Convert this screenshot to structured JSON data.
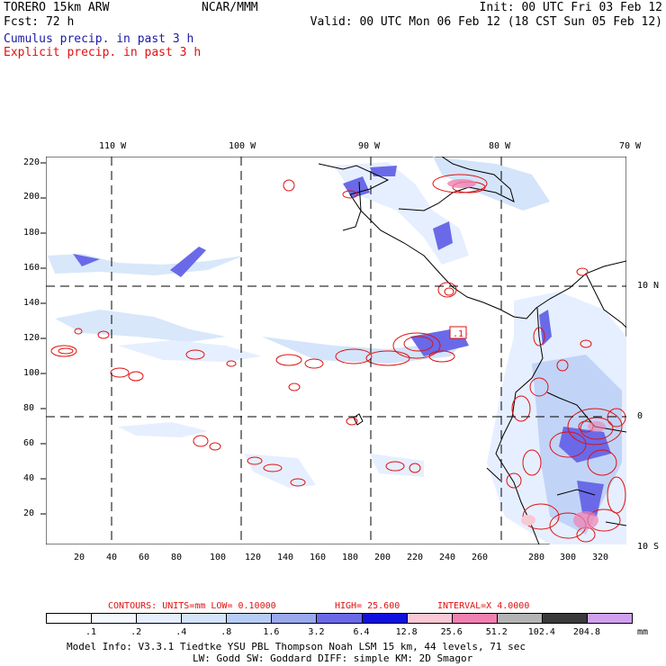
{
  "header": {
    "model": "TORERO  15km ARW",
    "center": "NCAR/MMM",
    "init": "Init: 00 UTC Fri 03 Feb 12",
    "fcst": "Fcst:   72 h",
    "valid": "Valid: 00 UTC Mon 06 Feb 12 (18 CST Sun 05 Feb 12)",
    "field1": "Cumulus precip. in past 3 h",
    "field2": "Explicit precip. in past 3 h"
  },
  "axes": {
    "lon_labels": [
      "110 W",
      "100 W",
      "90 W",
      "80 W",
      "70 W"
    ],
    "lat_labels": [
      "10 N",
      "0",
      "10 S"
    ],
    "y_ticks": [
      "220",
      "200",
      "180",
      "160",
      "140",
      "120",
      "100",
      "80",
      "60",
      "40",
      "20"
    ],
    "x_ticks": [
      "20",
      "40",
      "60",
      "80",
      "100",
      "120",
      "140",
      "160",
      "180",
      "200",
      "220",
      "240",
      "260",
      "280",
      "300",
      "320"
    ]
  },
  "contour_box_label": ".1",
  "contours_info": {
    "prefix": "CONTOURS:  UNITS=mm  LOW= 0.10000",
    "high": "HIGH=  25.600",
    "interval": "INTERVAL=X  4.0000"
  },
  "colorbar": {
    "units": "mm",
    "levels": [
      ".1",
      ".2",
      ".4",
      ".8",
      "1.6",
      "3.2",
      "6.4",
      "12.8",
      "25.6",
      "51.2",
      "102.4",
      "204.8"
    ],
    "colors": [
      "#ffffff",
      "#f4f8ff",
      "#e6efff",
      "#d4e4fa",
      "#b8cdf5",
      "#9aa8ee",
      "#6a6ae8",
      "#1010e0",
      "#f8c8d4",
      "#f080b0",
      "#b4b4b4",
      "#3a3a3a",
      "#d0a0f0"
    ]
  },
  "model_info": {
    "line1": "Model Info: V3.3.1    Tiedtke YSU PBL  Thompson    Noah LSM  15 km,   44 levels,   71 sec",
    "line2": "LW: Godd SW: Goddard DIFF: simple KM: 2D Smagor"
  }
}
